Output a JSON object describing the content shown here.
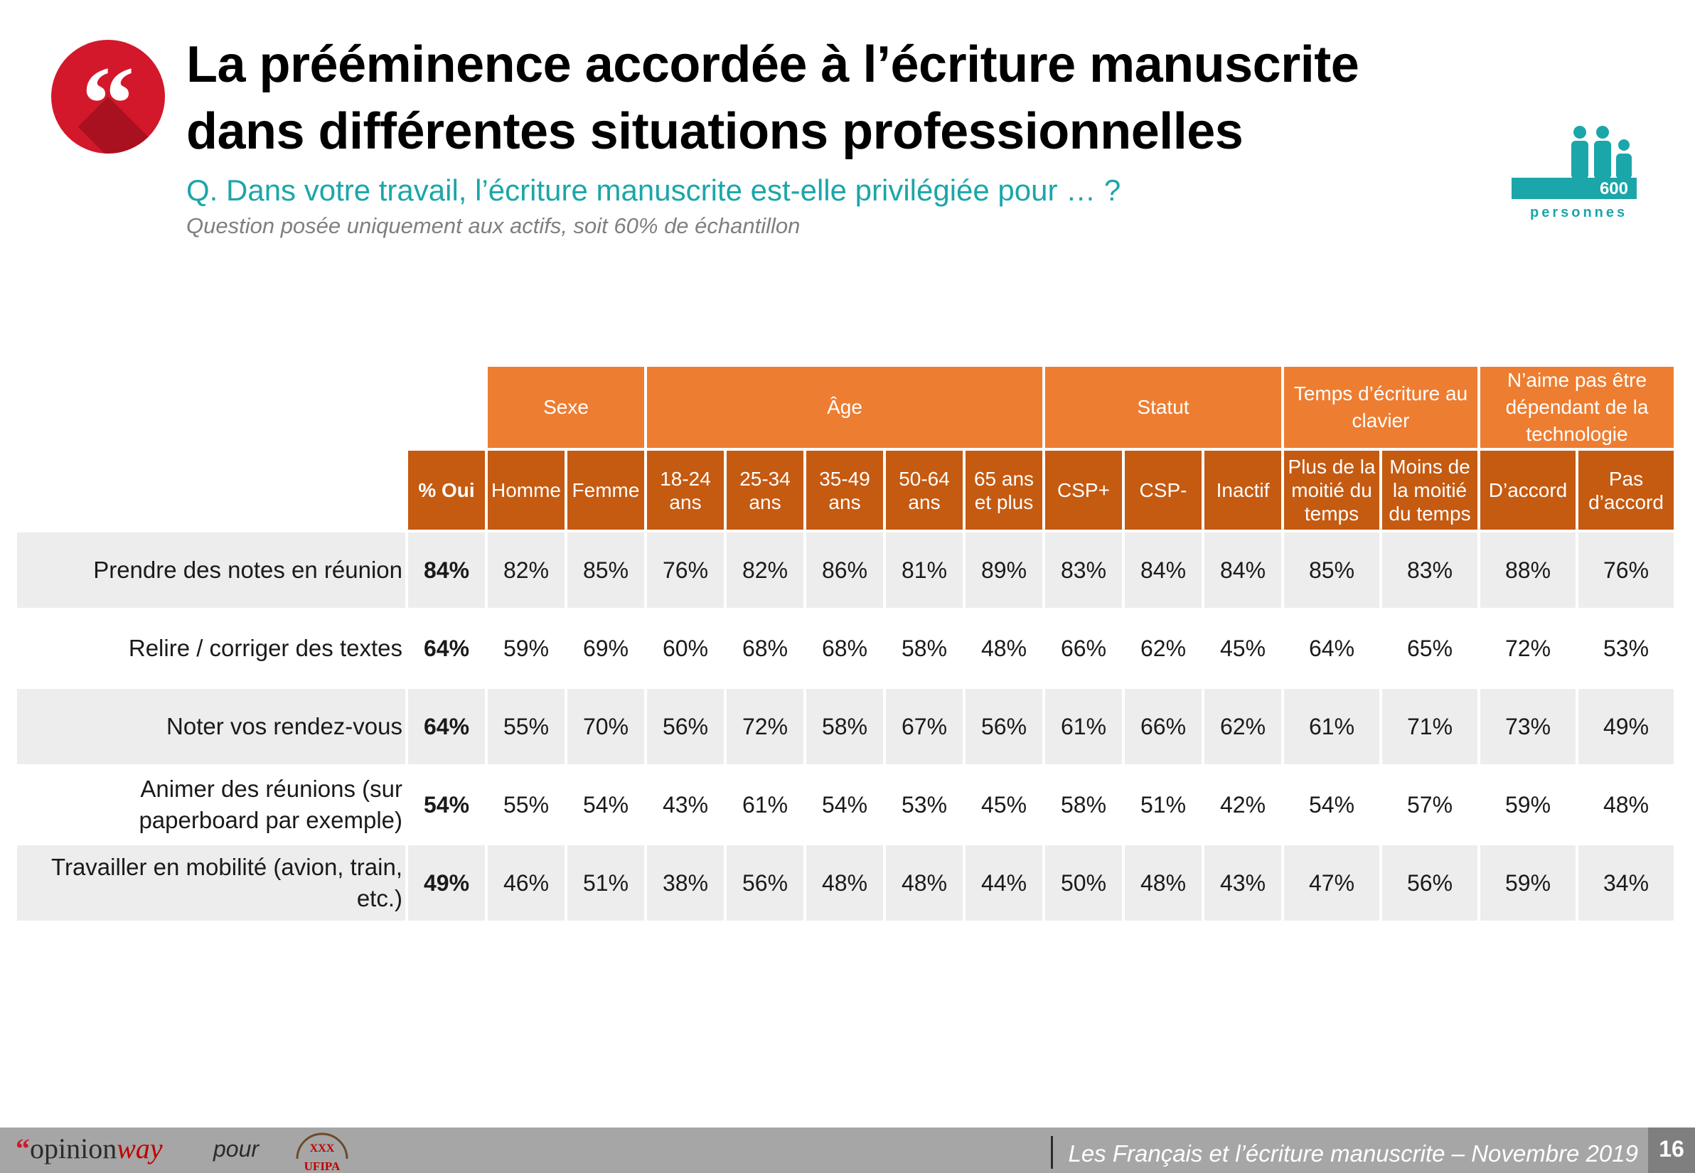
{
  "header": {
    "quote_glyph": "“",
    "title_line1": "La prééminence accordée à l’écriture manuscrite",
    "title_line2": "dans différentes situations professionnelles",
    "question": "Q. Dans votre travail, l’écriture manuscrite est-elle privilégiée pour … ?",
    "note": "Question posée uniquement aux actifs, soit 60% de échantillon"
  },
  "badge": {
    "count": "600",
    "unit": "personnes",
    "icon": "people-icon",
    "color": "#1ba6a9"
  },
  "table": {
    "groups": [
      {
        "label": "Sexe"
      },
      {
        "label": "Âge"
      },
      {
        "label": "Statut"
      },
      {
        "label": "Temps d’écriture au clavier"
      },
      {
        "label": "N’aime pas être dépendant de la technologie"
      }
    ],
    "subheaders": [
      "% Oui",
      "Homme",
      "Femme",
      "18-24 ans",
      "25-34 ans",
      "35-49 ans",
      "50-64 ans",
      "65 ans et plus",
      "CSP+",
      "CSP-",
      "Inactif",
      "Plus de la moitié du temps",
      "Moins de la moitié du temps",
      "D’accord",
      "Pas d’accord"
    ],
    "rows": [
      {
        "label": "Prendre des notes en réunion",
        "values": [
          "84%",
          "82%",
          "85%",
          "76%",
          "82%",
          "86%",
          "81%",
          "89%",
          "83%",
          "84%",
          "84%",
          "85%",
          "83%",
          "88%",
          "76%"
        ]
      },
      {
        "label": "Relire / corriger des textes",
        "values": [
          "64%",
          "59%",
          "69%",
          "60%",
          "68%",
          "68%",
          "58%",
          "48%",
          "66%",
          "62%",
          "45%",
          "64%",
          "65%",
          "72%",
          "53%"
        ]
      },
      {
        "label": "Noter vos rendez-vous",
        "values": [
          "64%",
          "55%",
          "70%",
          "56%",
          "72%",
          "58%",
          "67%",
          "56%",
          "61%",
          "66%",
          "62%",
          "61%",
          "71%",
          "73%",
          "49%"
        ]
      },
      {
        "label": "Animer des réunions (sur paperboard par exemple)",
        "values": [
          "54%",
          "55%",
          "54%",
          "43%",
          "61%",
          "54%",
          "53%",
          "45%",
          "58%",
          "51%",
          "42%",
          "54%",
          "57%",
          "59%",
          "48%"
        ]
      },
      {
        "label": "Travailler en mobilité (avion, train, etc.)",
        "values": [
          "49%",
          "46%",
          "51%",
          "38%",
          "56%",
          "48%",
          "48%",
          "44%",
          "50%",
          "48%",
          "43%",
          "47%",
          "56%",
          "59%",
          "34%"
        ]
      }
    ]
  },
  "footer": {
    "logo_quote": "“",
    "logo_opinion": "opinion",
    "logo_way": "way",
    "pour": "pour",
    "emblem_text": "UFIPA",
    "study": "Les Français et l’écriture manuscrite – Novembre 2019",
    "page": "16"
  },
  "colors": {
    "accent_red": "#d3182b",
    "teal": "#1ba6a9",
    "orange_group": "#ed7d31",
    "orange_sub": "#c55a11",
    "row_shade": "#ededed"
  }
}
